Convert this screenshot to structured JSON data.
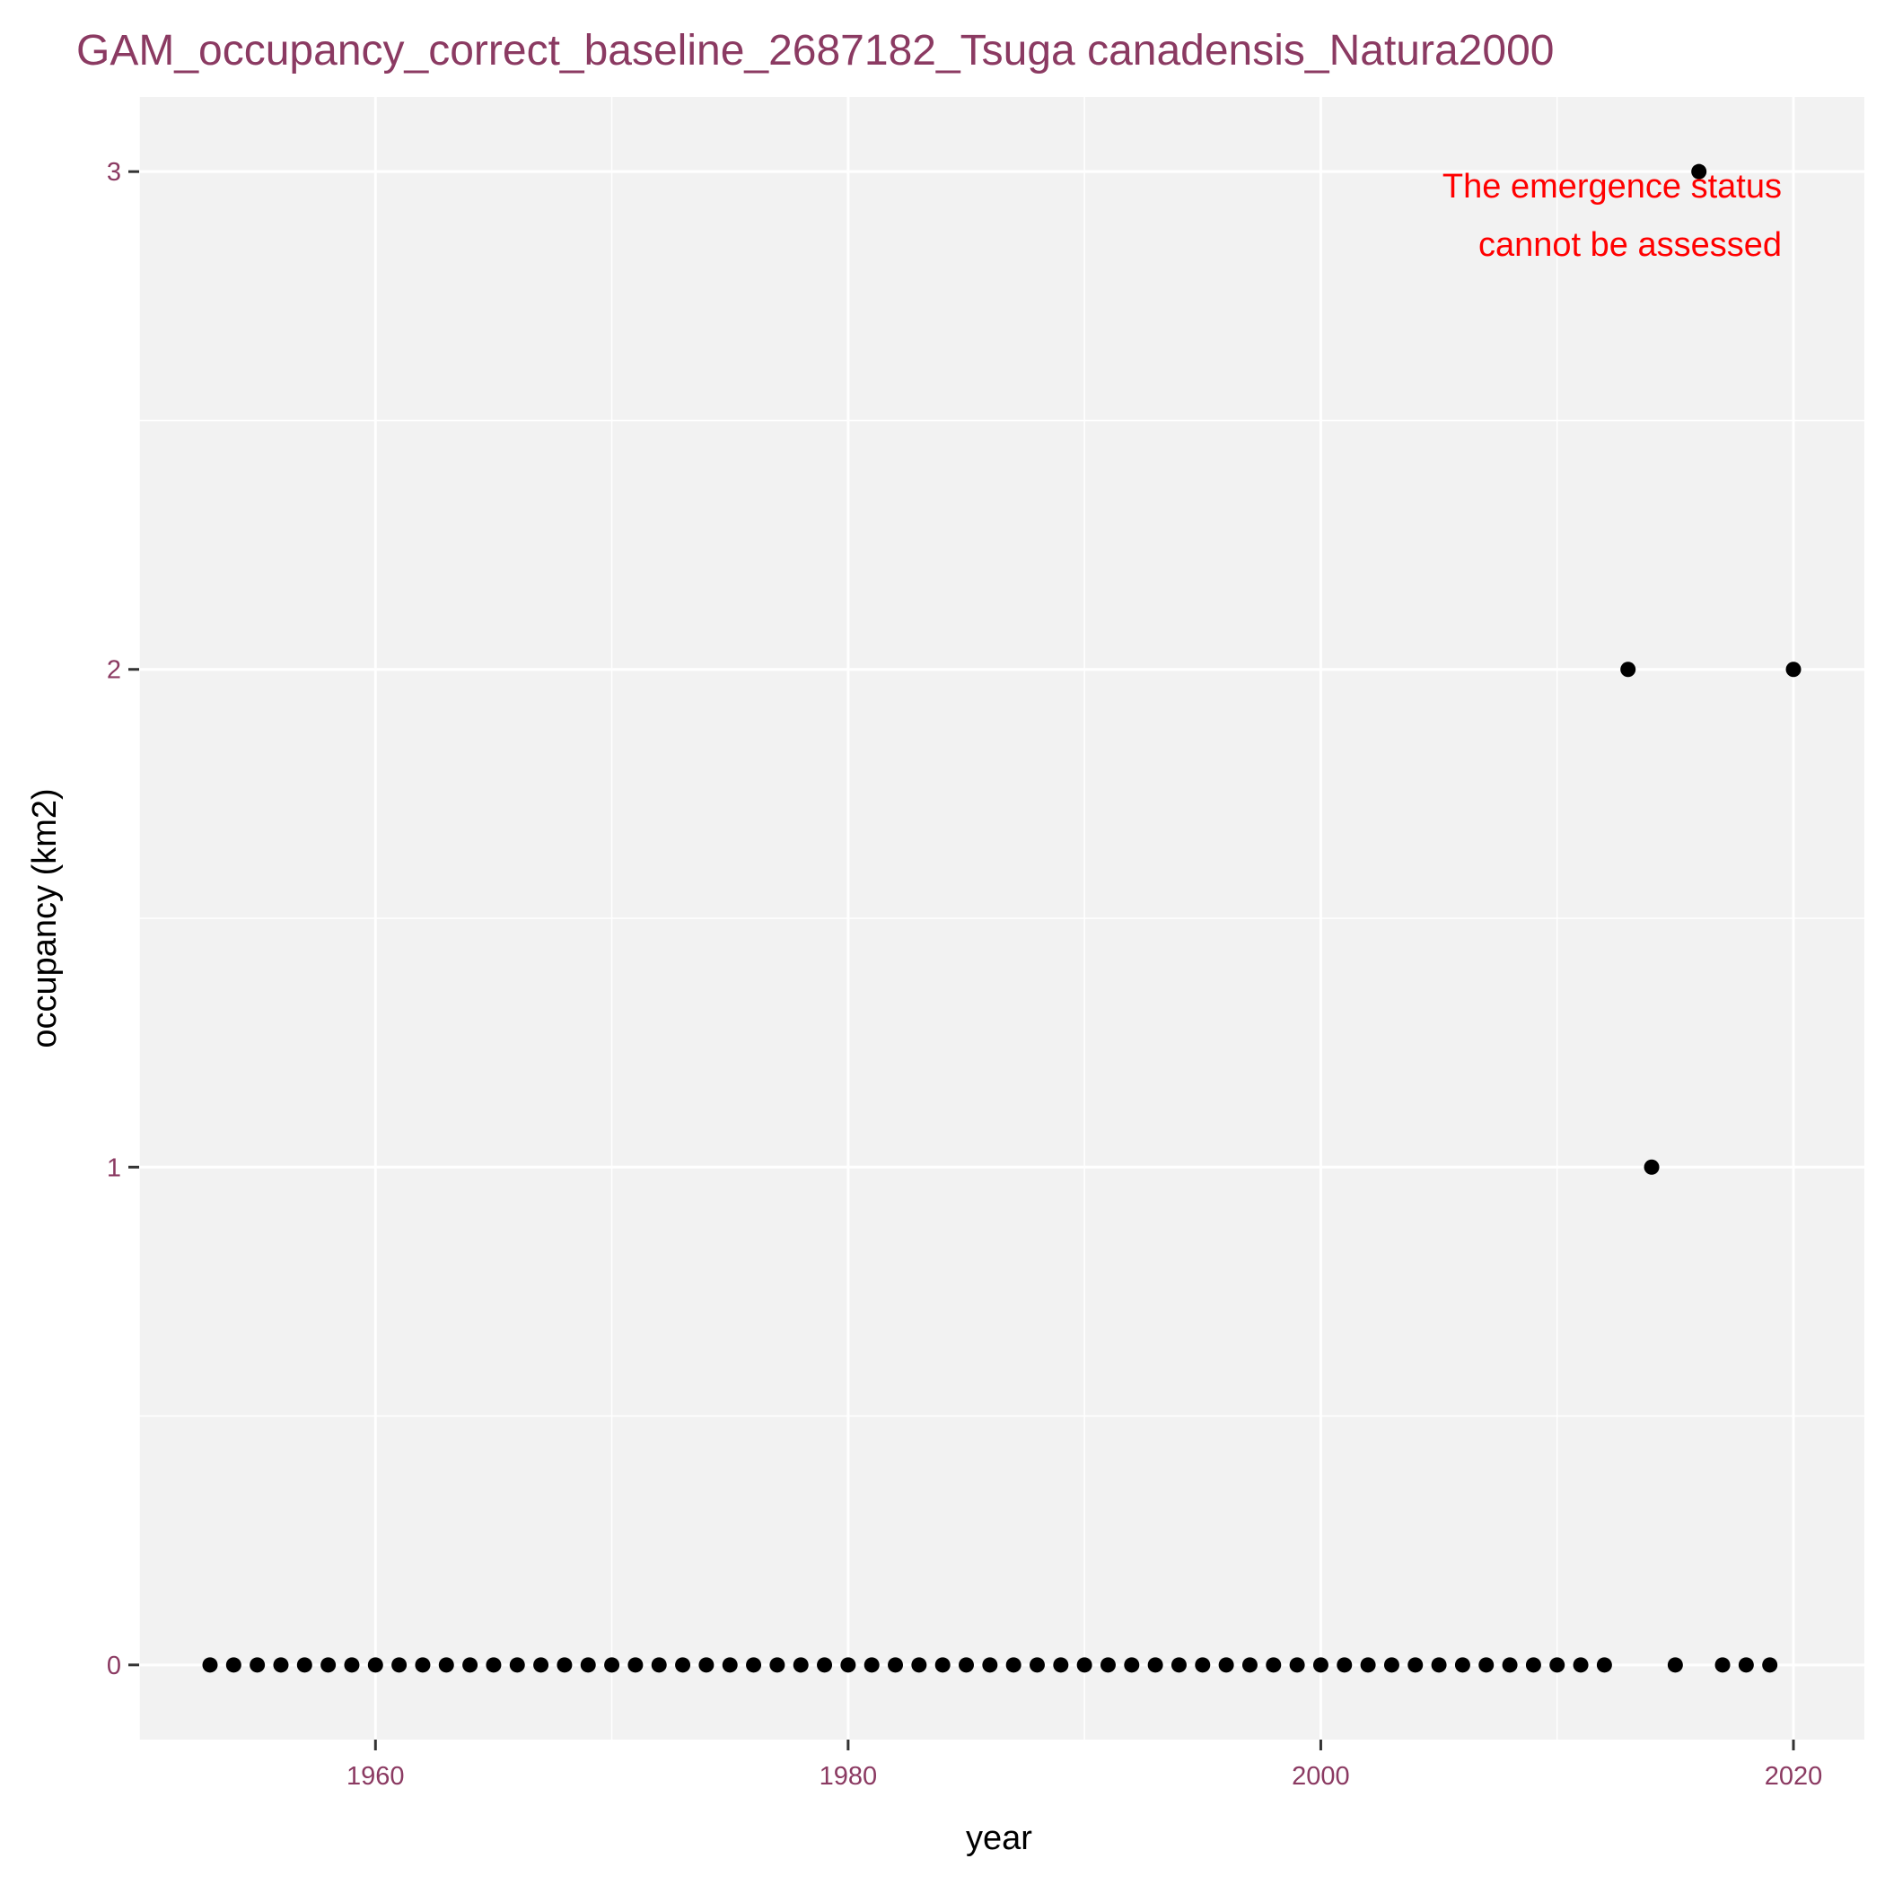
{
  "chart_data": {
    "type": "scatter",
    "title": "GAM_occupancy_correct_baseline_2687182_Tsuga canadensis_Natura2000",
    "xlabel": "year",
    "ylabel": "occupancy (km2)",
    "xlim": [
      1950,
      2023
    ],
    "ylim": [
      -0.15,
      3.15
    ],
    "x_ticks": [
      1960,
      1980,
      2000,
      2020
    ],
    "y_ticks": [
      0,
      1,
      2,
      3
    ],
    "grid": true,
    "annotation": [
      "The emergence status",
      "cannot be assessed"
    ],
    "colors": {
      "title": "#8B3A62",
      "tick_labels": "#8B3A62",
      "panel_background": "#F2F2F2",
      "grid": "#FFFFFF",
      "points": "#000000",
      "annotation": "#FF0000"
    },
    "points": [
      {
        "x": 1953,
        "y": 0
      },
      {
        "x": 1954,
        "y": 0
      },
      {
        "x": 1955,
        "y": 0
      },
      {
        "x": 1956,
        "y": 0
      },
      {
        "x": 1957,
        "y": 0
      },
      {
        "x": 1958,
        "y": 0
      },
      {
        "x": 1959,
        "y": 0
      },
      {
        "x": 1960,
        "y": 0
      },
      {
        "x": 1961,
        "y": 0
      },
      {
        "x": 1962,
        "y": 0
      },
      {
        "x": 1963,
        "y": 0
      },
      {
        "x": 1964,
        "y": 0
      },
      {
        "x": 1965,
        "y": 0
      },
      {
        "x": 1966,
        "y": 0
      },
      {
        "x": 1967,
        "y": 0
      },
      {
        "x": 1968,
        "y": 0
      },
      {
        "x": 1969,
        "y": 0
      },
      {
        "x": 1970,
        "y": 0
      },
      {
        "x": 1971,
        "y": 0
      },
      {
        "x": 1972,
        "y": 0
      },
      {
        "x": 1973,
        "y": 0
      },
      {
        "x": 1974,
        "y": 0
      },
      {
        "x": 1975,
        "y": 0
      },
      {
        "x": 1976,
        "y": 0
      },
      {
        "x": 1977,
        "y": 0
      },
      {
        "x": 1978,
        "y": 0
      },
      {
        "x": 1979,
        "y": 0
      },
      {
        "x": 1980,
        "y": 0
      },
      {
        "x": 1981,
        "y": 0
      },
      {
        "x": 1982,
        "y": 0
      },
      {
        "x": 1983,
        "y": 0
      },
      {
        "x": 1984,
        "y": 0
      },
      {
        "x": 1985,
        "y": 0
      },
      {
        "x": 1986,
        "y": 0
      },
      {
        "x": 1987,
        "y": 0
      },
      {
        "x": 1988,
        "y": 0
      },
      {
        "x": 1989,
        "y": 0
      },
      {
        "x": 1990,
        "y": 0
      },
      {
        "x": 1991,
        "y": 0
      },
      {
        "x": 1992,
        "y": 0
      },
      {
        "x": 1993,
        "y": 0
      },
      {
        "x": 1994,
        "y": 0
      },
      {
        "x": 1995,
        "y": 0
      },
      {
        "x": 1996,
        "y": 0
      },
      {
        "x": 1997,
        "y": 0
      },
      {
        "x": 1998,
        "y": 0
      },
      {
        "x": 1999,
        "y": 0
      },
      {
        "x": 2000,
        "y": 0
      },
      {
        "x": 2001,
        "y": 0
      },
      {
        "x": 2002,
        "y": 0
      },
      {
        "x": 2003,
        "y": 0
      },
      {
        "x": 2004,
        "y": 0
      },
      {
        "x": 2005,
        "y": 0
      },
      {
        "x": 2006,
        "y": 0
      },
      {
        "x": 2007,
        "y": 0
      },
      {
        "x": 2008,
        "y": 0
      },
      {
        "x": 2009,
        "y": 0
      },
      {
        "x": 2010,
        "y": 0
      },
      {
        "x": 2011,
        "y": 0
      },
      {
        "x": 2012,
        "y": 0
      },
      {
        "x": 2013,
        "y": 2
      },
      {
        "x": 2014,
        "y": 1
      },
      {
        "x": 2015,
        "y": 0
      },
      {
        "x": 2016,
        "y": 3
      },
      {
        "x": 2017,
        "y": 0
      },
      {
        "x": 2018,
        "y": 0
      },
      {
        "x": 2019,
        "y": 0
      },
      {
        "x": 2020,
        "y": 2
      }
    ]
  }
}
